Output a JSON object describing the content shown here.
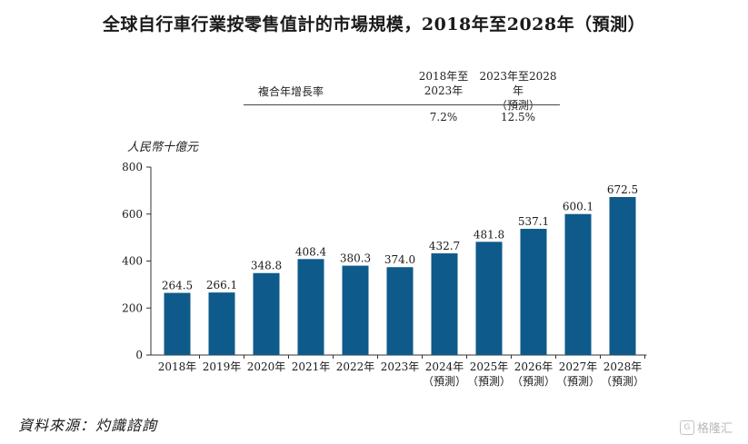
{
  "title": "全球自行車行業按零售值計的市場規模，2018年至2028年（預測）",
  "cagr_table": {
    "row_label": "複合年增長率",
    "col1_header": [
      "2018年至",
      "2023年"
    ],
    "col2_header": [
      "2023年至2028年",
      "（預測）"
    ],
    "col1_value": "7.2%",
    "col2_value": "12.5%"
  },
  "unit_label": "人民幣十億元",
  "source": "資料來源：灼識諮詢",
  "watermark": {
    "text": "格隆汇",
    "icon": "g-logo-icon"
  },
  "colors": {
    "bar": "#0e5a8a",
    "axis": "#333333",
    "text": "#1a1a1a"
  },
  "chart_data": {
    "type": "bar",
    "title": "全球自行車行業按零售值計的市場規模，2018年至2028年（預測）",
    "ylabel": "人民幣十億元",
    "xlabel": "",
    "ylim": [
      0,
      800
    ],
    "yticks": [
      0,
      200,
      400,
      600,
      800
    ],
    "grid": false,
    "categories": [
      "2018年",
      "2019年",
      "2020年",
      "2021年",
      "2022年",
      "2023年",
      "2024年",
      "2025年",
      "2026年",
      "2027年",
      "2028年"
    ],
    "category_sublabels": [
      "",
      "",
      "",
      "",
      "",
      "",
      "（預測）",
      "（預測）",
      "（預測）",
      "（預測）",
      "（預測）"
    ],
    "values": [
      264.5,
      266.1,
      348.8,
      408.4,
      380.3,
      374.0,
      432.7,
      481.8,
      537.1,
      600.1,
      672.5
    ],
    "value_labels": [
      "264.5",
      "266.1",
      "348.8",
      "408.4",
      "380.3",
      "374.0",
      "432.7",
      "481.8",
      "537.1",
      "600.1",
      "672.5"
    ]
  }
}
